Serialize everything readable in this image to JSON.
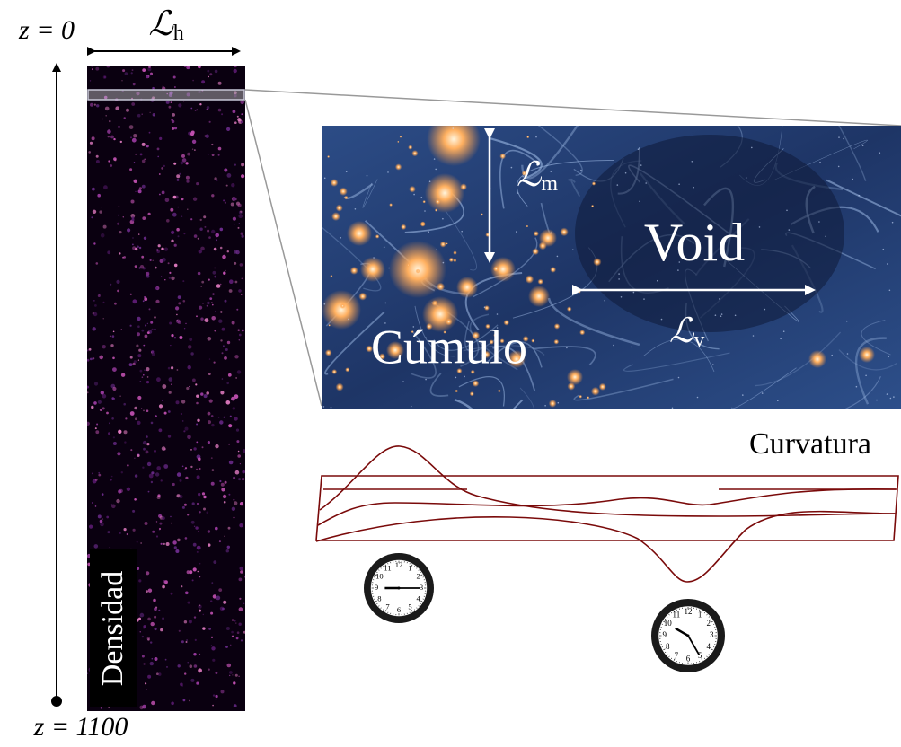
{
  "top_label": "z = 0",
  "bottom_label": "z = 1100",
  "horizon_length": {
    "symbol": "ℒ",
    "subscript": "h"
  },
  "density_label": "Densidad",
  "inset": {
    "matter_length": {
      "symbol": "ℒ",
      "subscript": "m"
    },
    "void_label": "Void",
    "void_length": {
      "symbol": "ℒ",
      "subscript": "v"
    },
    "cluster_label": "Cúmulo"
  },
  "curvature_label": "Curvatura",
  "clock_numerals": [
    "12",
    "1",
    "2",
    "3",
    "4",
    "5",
    "6",
    "7",
    "8",
    "9",
    "10",
    "11"
  ]
}
